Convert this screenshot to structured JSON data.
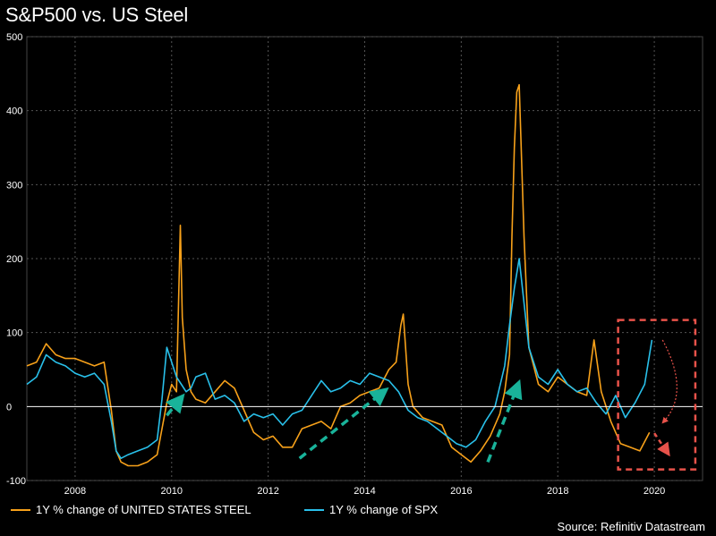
{
  "title": "S&P500 vs. US Steel",
  "source": "Source: Refinitiv Datastream",
  "colors": {
    "steel": "#f7a11a",
    "spx": "#29c0ea",
    "arrow_teal": "#19b39a",
    "box_red": "#e8524a",
    "grid": "#555555",
    "zero": "#ffffff"
  },
  "legend": [
    {
      "label": "1Y % change of UNITED STATES STEEL",
      "color": "#f7a11a"
    },
    {
      "label": "1Y % change of SPX",
      "color": "#29c0ea"
    }
  ],
  "chart_data": {
    "type": "line",
    "title": "S&P500 vs. US Steel",
    "xlim": [
      2007.0,
      2021.0
    ],
    "ylim": [
      -100,
      500
    ],
    "x_ticks": [
      2008,
      2010,
      2012,
      2014,
      2016,
      2018,
      2020
    ],
    "y_ticks": [
      -100,
      0,
      100,
      200,
      300,
      400,
      500
    ],
    "grid": true,
    "legend_position": "bottom",
    "series": [
      {
        "name": "1Y % change of UNITED STATES STEEL",
        "color": "#f7a11a",
        "x": [
          2007.0,
          2007.2,
          2007.4,
          2007.6,
          2007.8,
          2008.0,
          2008.2,
          2008.4,
          2008.6,
          2008.75,
          2008.85,
          2008.95,
          2009.1,
          2009.3,
          2009.5,
          2009.7,
          2009.8,
          2009.9,
          2010.0,
          2010.1,
          2010.18,
          2010.22,
          2010.3,
          2010.4,
          2010.5,
          2010.7,
          2010.9,
          2011.1,
          2011.3,
          2011.5,
          2011.7,
          2011.9,
          2012.1,
          2012.3,
          2012.5,
          2012.7,
          2012.9,
          2013.1,
          2013.3,
          2013.5,
          2013.7,
          2013.9,
          2014.1,
          2014.3,
          2014.5,
          2014.65,
          2014.75,
          2014.8,
          2014.9,
          2015.0,
          2015.2,
          2015.4,
          2015.6,
          2015.8,
          2016.0,
          2016.2,
          2016.4,
          2016.6,
          2016.8,
          2016.9,
          2017.0,
          2017.05,
          2017.1,
          2017.15,
          2017.2,
          2017.3,
          2017.4,
          2017.6,
          2017.8,
          2018.0,
          2018.2,
          2018.4,
          2018.6,
          2018.75,
          2018.9,
          2019.1,
          2019.3,
          2019.5,
          2019.7,
          2019.9
        ],
        "values": [
          55,
          60,
          85,
          70,
          65,
          65,
          60,
          55,
          60,
          -5,
          -60,
          -75,
          -80,
          -80,
          -75,
          -65,
          -30,
          5,
          30,
          20,
          245,
          120,
          50,
          20,
          10,
          5,
          20,
          35,
          25,
          -5,
          -35,
          -45,
          -40,
          -55,
          -55,
          -30,
          -25,
          -20,
          -30,
          0,
          5,
          15,
          20,
          25,
          50,
          60,
          110,
          125,
          30,
          0,
          -15,
          -20,
          -25,
          -55,
          -65,
          -75,
          -60,
          -40,
          -10,
          20,
          70,
          230,
          350,
          425,
          435,
          230,
          80,
          30,
          20,
          40,
          30,
          20,
          15,
          90,
          20,
          -20,
          -50,
          -55,
          -60,
          -35
        ]
      },
      {
        "name": "1Y % change of SPX",
        "color": "#29c0ea",
        "x": [
          2007.0,
          2007.2,
          2007.4,
          2007.6,
          2007.8,
          2008.0,
          2008.2,
          2008.4,
          2008.6,
          2008.75,
          2008.85,
          2008.95,
          2009.1,
          2009.3,
          2009.5,
          2009.7,
          2009.8,
          2009.9,
          2010.0,
          2010.1,
          2010.2,
          2010.3,
          2010.4,
          2010.5,
          2010.7,
          2010.9,
          2011.1,
          2011.3,
          2011.5,
          2011.7,
          2011.9,
          2012.1,
          2012.3,
          2012.5,
          2012.7,
          2012.9,
          2013.1,
          2013.3,
          2013.5,
          2013.7,
          2013.9,
          2014.1,
          2014.3,
          2014.5,
          2014.7,
          2014.9,
          2015.1,
          2015.3,
          2015.5,
          2015.7,
          2015.9,
          2016.1,
          2016.3,
          2016.5,
          2016.7,
          2016.9,
          2017.0,
          2017.1,
          2017.2,
          2017.3,
          2017.4,
          2017.6,
          2017.8,
          2018.0,
          2018.2,
          2018.4,
          2018.6,
          2018.8,
          2019.0,
          2019.2,
          2019.4,
          2019.6,
          2019.8,
          2019.95
        ],
        "values": [
          30,
          40,
          70,
          60,
          55,
          45,
          40,
          45,
          30,
          -20,
          -60,
          -70,
          -65,
          -60,
          -55,
          -45,
          10,
          80,
          60,
          40,
          30,
          20,
          25,
          40,
          45,
          10,
          15,
          5,
          -20,
          -10,
          -15,
          -10,
          -25,
          -10,
          -5,
          15,
          35,
          20,
          25,
          35,
          30,
          45,
          40,
          35,
          20,
          -5,
          -15,
          -20,
          -30,
          -40,
          -50,
          -55,
          -45,
          -20,
          0,
          55,
          110,
          160,
          200,
          140,
          80,
          40,
          30,
          50,
          30,
          20,
          25,
          5,
          -10,
          15,
          -15,
          5,
          30,
          90
        ]
      }
    ]
  }
}
